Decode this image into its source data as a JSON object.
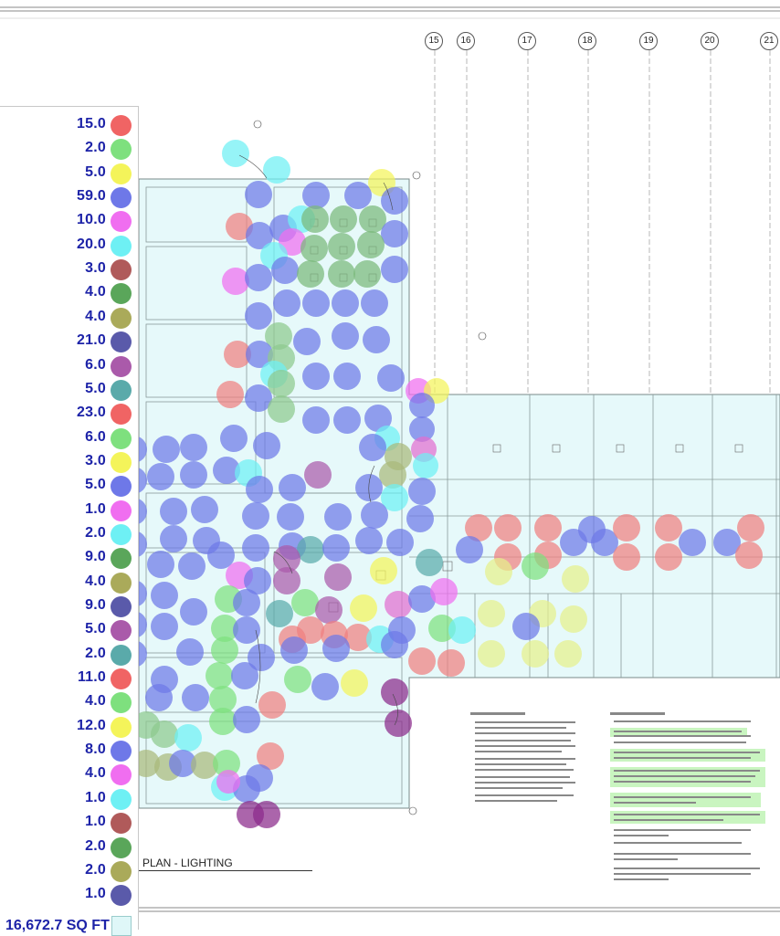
{
  "legend": {
    "rows": [
      {
        "value": "15.0",
        "color": "#f06464"
      },
      {
        "value": "2.0",
        "color": "#7ee07e"
      },
      {
        "value": "5.0",
        "color": "#f4f45a"
      },
      {
        "value": "59.0",
        "color": "#6e78e8"
      },
      {
        "value": "10.0",
        "color": "#f06ef0"
      },
      {
        "value": "20.0",
        "color": "#6ef0f4"
      },
      {
        "value": "3.0",
        "color": "#b05a5a"
      },
      {
        "value": "4.0",
        "color": "#5aa65a"
      },
      {
        "value": "4.0",
        "color": "#aaaa5a"
      },
      {
        "value": "21.0",
        "color": "#5a5aaa"
      },
      {
        "value": "6.0",
        "color": "#aa5aaa"
      },
      {
        "value": "5.0",
        "color": "#5aaaaa"
      },
      {
        "value": "23.0",
        "color": "#f06464"
      },
      {
        "value": "6.0",
        "color": "#7ee07e"
      },
      {
        "value": "3.0",
        "color": "#f4f45a"
      },
      {
        "value": "5.0",
        "color": "#6e78e8"
      },
      {
        "value": "1.0",
        "color": "#f06ef0"
      },
      {
        "value": "2.0",
        "color": "#6ef0f4"
      },
      {
        "value": "9.0",
        "color": "#5aa65a"
      },
      {
        "value": "4.0",
        "color": "#aaaa5a"
      },
      {
        "value": "9.0",
        "color": "#5a5aaa"
      },
      {
        "value": "5.0",
        "color": "#aa5aaa"
      },
      {
        "value": "2.0",
        "color": "#5aaaaa"
      },
      {
        "value": "11.0",
        "color": "#f06464"
      },
      {
        "value": "4.0",
        "color": "#7ee07e"
      },
      {
        "value": "12.0",
        "color": "#f4f45a"
      },
      {
        "value": "8.0",
        "color": "#6e78e8"
      },
      {
        "value": "4.0",
        "color": "#f06ef0"
      },
      {
        "value": "1.0",
        "color": "#6ef0f4"
      },
      {
        "value": "1.0",
        "color": "#b05a5a"
      },
      {
        "value": "2.0",
        "color": "#5aa65a"
      },
      {
        "value": "2.0",
        "color": "#aaaa5a"
      },
      {
        "value": "1.0",
        "color": "#5a5aaa"
      }
    ],
    "total": "16,672.7 SQ FT",
    "total_color": "#dff7f8"
  },
  "plan_title": "PLAN - LIGHTING",
  "column_labels": [
    "15",
    "16",
    "17",
    "18",
    "19",
    "20",
    "21"
  ]
}
